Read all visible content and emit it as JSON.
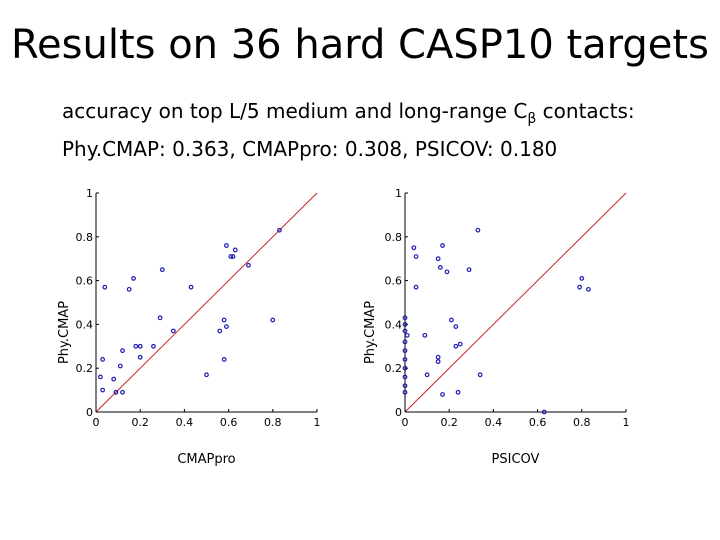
{
  "slide": {
    "title": "Results on 36 hard CASP10 targets",
    "subtitle_line1_prefix": "accuracy on top L/5 medium and long-range C",
    "subtitle_line1_subscript": "β",
    "subtitle_line1_suffix": " contacts:",
    "subtitle_line2": "Phy.CMAP: 0.363, CMAPpro: 0.308, PSICOV: 0.180"
  },
  "colors": {
    "points": "#1f1fb4",
    "diagonal": "#cc2222",
    "axis": "#000000"
  },
  "chart_data": [
    {
      "type": "scatter",
      "xlabel": "CMAPpro",
      "ylabel": "Phy.CMAP",
      "xlim": [
        0,
        1
      ],
      "ylim": [
        0,
        1
      ],
      "xticks": [
        "0",
        "0.2",
        "0.4",
        "0.6",
        "0.8",
        "1"
      ],
      "yticks": [
        "0",
        "0.2",
        "0.4",
        "0.6",
        "0.8",
        "1"
      ],
      "diagonal": true,
      "points": [
        [
          0.83,
          0.83
        ],
        [
          0.59,
          0.76
        ],
        [
          0.63,
          0.74
        ],
        [
          0.61,
          0.71
        ],
        [
          0.62,
          0.71
        ],
        [
          0.69,
          0.67
        ],
        [
          0.3,
          0.65
        ],
        [
          0.17,
          0.61
        ],
        [
          0.04,
          0.57
        ],
        [
          0.15,
          0.56
        ],
        [
          0.43,
          0.57
        ],
        [
          0.29,
          0.43
        ],
        [
          0.58,
          0.42
        ],
        [
          0.8,
          0.42
        ],
        [
          0.59,
          0.39
        ],
        [
          0.56,
          0.37
        ],
        [
          0.35,
          0.37
        ],
        [
          0.12,
          0.28
        ],
        [
          0.18,
          0.3
        ],
        [
          0.2,
          0.3
        ],
        [
          0.26,
          0.3
        ],
        [
          0.03,
          0.24
        ],
        [
          0.2,
          0.25
        ],
        [
          0.58,
          0.24
        ],
        [
          0.11,
          0.21
        ],
        [
          0.02,
          0.16
        ],
        [
          0.08,
          0.15
        ],
        [
          0.5,
          0.17
        ],
        [
          0.03,
          0.1
        ],
        [
          0.09,
          0.09
        ],
        [
          0.12,
          0.09
        ]
      ]
    },
    {
      "type": "scatter",
      "xlabel": "PSICOV",
      "ylabel": "Phy.CMAP",
      "xlim": [
        0,
        1
      ],
      "ylim": [
        0,
        1
      ],
      "xticks": [
        "0",
        "0.2",
        "0.4",
        "0.6",
        "0.8",
        "1"
      ],
      "yticks": [
        "0",
        "0.2",
        "0.4",
        "0.6",
        "0.8",
        "1"
      ],
      "diagonal": true,
      "points": [
        [
          0.33,
          0.83
        ],
        [
          0.04,
          0.75
        ],
        [
          0.17,
          0.76
        ],
        [
          0.05,
          0.71
        ],
        [
          0.15,
          0.7
        ],
        [
          0.16,
          0.66
        ],
        [
          0.19,
          0.64
        ],
        [
          0.29,
          0.65
        ],
        [
          0.8,
          0.61
        ],
        [
          0.79,
          0.57
        ],
        [
          0.83,
          0.56
        ],
        [
          0.05,
          0.57
        ],
        [
          0.0,
          0.43
        ],
        [
          0.21,
          0.42
        ],
        [
          0.0,
          0.4
        ],
        [
          0.23,
          0.39
        ],
        [
          0.0,
          0.37
        ],
        [
          0.09,
          0.35
        ],
        [
          0.01,
          0.35
        ],
        [
          0.0,
          0.32
        ],
        [
          0.25,
          0.31
        ],
        [
          0.23,
          0.3
        ],
        [
          0.0,
          0.28
        ],
        [
          0.15,
          0.25
        ],
        [
          0.0,
          0.24
        ],
        [
          0.15,
          0.23
        ],
        [
          0.0,
          0.2
        ],
        [
          0.0,
          0.16
        ],
        [
          0.1,
          0.17
        ],
        [
          0.34,
          0.17
        ],
        [
          0.0,
          0.12
        ],
        [
          0.0,
          0.09
        ],
        [
          0.17,
          0.08
        ],
        [
          0.24,
          0.09
        ],
        [
          0.63,
          0.0
        ]
      ]
    }
  ]
}
